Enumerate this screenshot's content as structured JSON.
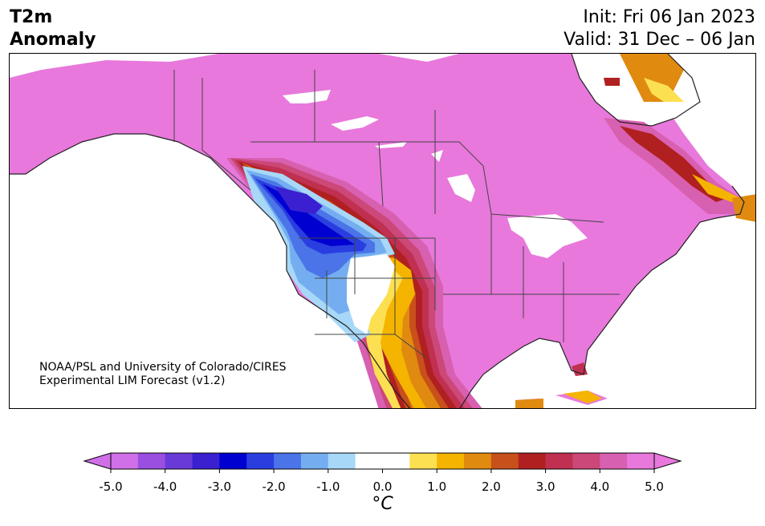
{
  "header": {
    "title_line1": "T2m",
    "title_line2": "Anomaly",
    "init_text": "Init: Fri 06 Jan 2023",
    "valid_text": "Valid: 31 Dec – 06 Jan"
  },
  "credit": {
    "line1": "NOAA/PSL and University of Colorado/CIRES",
    "line2": "Experimental LIM Forecast (v1.2)"
  },
  "colorbar": {
    "unit_label": "°C",
    "ticks": [
      "-5.0",
      "-4.0",
      "-3.0",
      "-2.0",
      "-1.0",
      "0.0",
      "1.0",
      "2.0",
      "3.0",
      "4.0",
      "5.0"
    ],
    "colors": [
      "#d070e8",
      "#9a4fe0",
      "#6a3ad8",
      "#3a20d0",
      "#0000d0",
      "#2a3ee0",
      "#4a74e8",
      "#74aef0",
      "#a8d8f8",
      "#ffffff",
      "#ffffff",
      "#fde052",
      "#f4b400",
      "#e08a10",
      "#c8501a",
      "#b02020",
      "#c03050",
      "#cc4878",
      "#d860b0",
      "#e878dc"
    ],
    "over_color": "#e878dc",
    "under_color": "#d070e8"
  },
  "map": {
    "land_color": "#e878dc",
    "colors": {
      "cold1": "#a8d8f8",
      "cold2": "#74aef0",
      "cold3": "#4a74e8",
      "cold4": "#2a3ee0",
      "cold5": "#0000d0",
      "cold6": "#3a20d0",
      "warm1": "#fde052",
      "warm2": "#f4b400",
      "warm3": "#e08a10",
      "warm4": "#c8501a",
      "warm5": "#b02020",
      "warm6": "#c03050",
      "warm7": "#cc4878",
      "warm8": "#d860b0"
    }
  }
}
